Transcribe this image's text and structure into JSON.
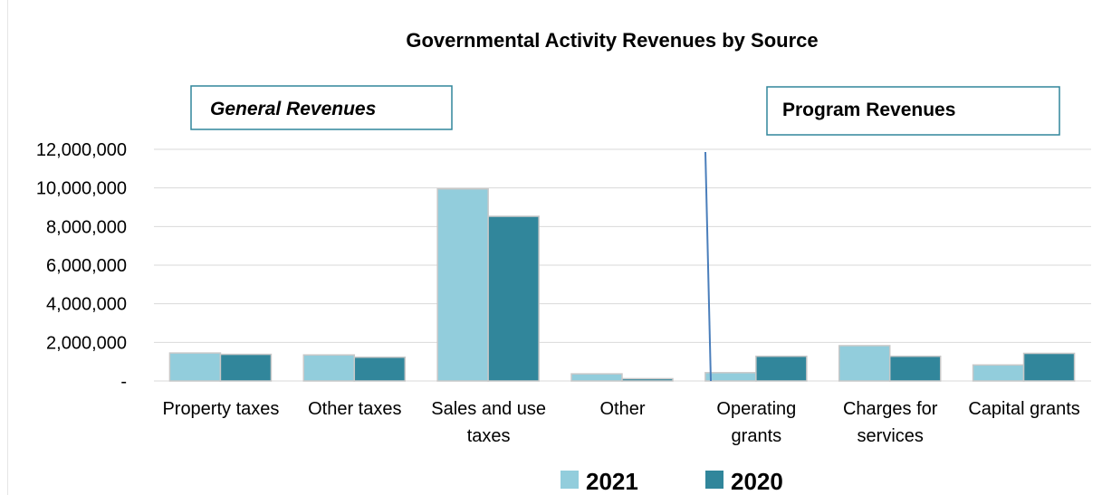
{
  "chart_data": {
    "type": "bar",
    "title": "Governmental Activity Revenues by Source",
    "categories": [
      [
        "Property taxes"
      ],
      [
        "Other taxes"
      ],
      [
        "Sales and use",
        "taxes"
      ],
      [
        "Other"
      ],
      [
        "Operating",
        "grants"
      ],
      [
        "Charges for",
        "services"
      ],
      [
        "Capital grants"
      ]
    ],
    "series": [
      {
        "name": "2021",
        "color": "#92cddc",
        "values": [
          1450000,
          1350000,
          9950000,
          370000,
          430000,
          1830000,
          830000
        ]
      },
      {
        "name": "2020",
        "color": "#31869b",
        "values": [
          1380000,
          1230000,
          8530000,
          120000,
          1280000,
          1280000,
          1430000
        ]
      }
    ],
    "ylim": [
      0,
      12000000
    ],
    "y_ticks": [
      {
        "value": 0,
        "label": "-"
      },
      {
        "value": 2000000,
        "label": "2,000,000"
      },
      {
        "value": 4000000,
        "label": "4,000,000"
      },
      {
        "value": 6000000,
        "label": "6,000,000"
      },
      {
        "value": 8000000,
        "label": "8,000,000"
      },
      {
        "value": 10000000,
        "label": "10,000,000"
      },
      {
        "value": 12000000,
        "label": "12,000,000"
      }
    ],
    "grid": true,
    "legend_position": "bottom",
    "annotations": {
      "general": "General Revenues",
      "program": "Program Revenues"
    }
  }
}
